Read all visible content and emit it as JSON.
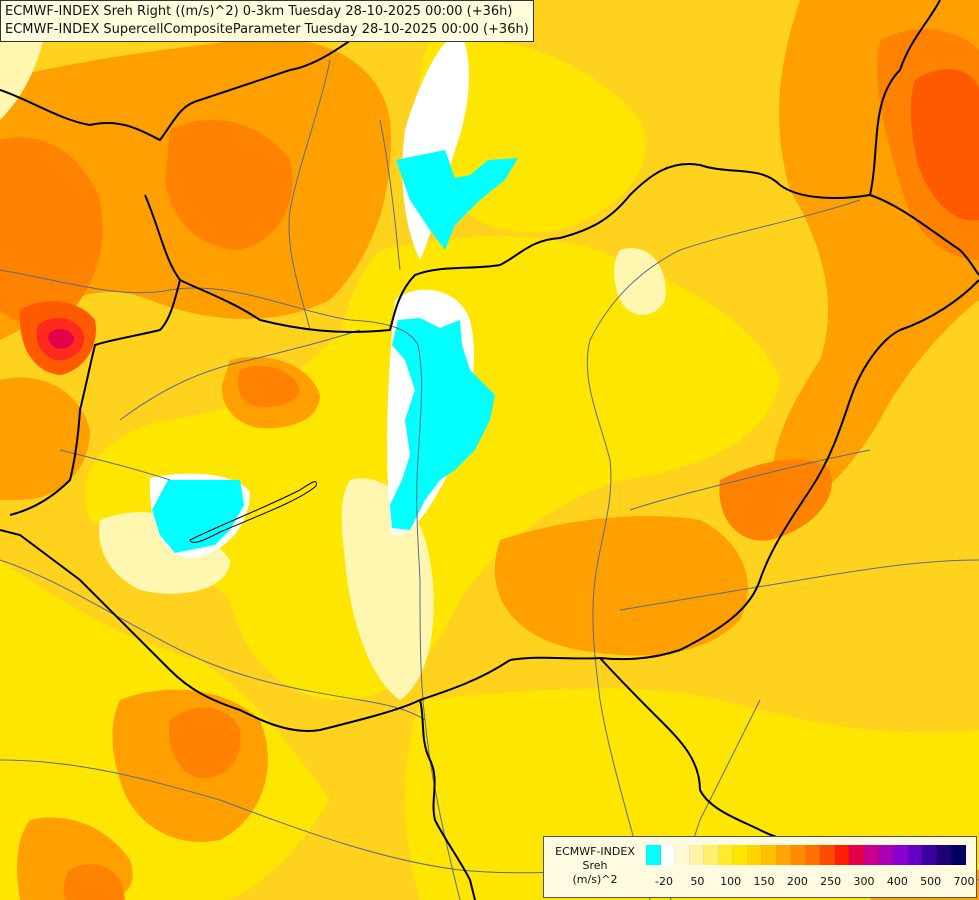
{
  "title": {
    "line1": "ECMWF-INDEX Sreh Right ((m/s)^2) 0-3km Tuesday 28-10-2025 00:00 (+36h)",
    "line2": "ECMWF-INDEX SupercellCompositeParameter Tuesday 28-10-2025 00:00 (+36h)"
  },
  "legend": {
    "name_line1": "ECMWF-INDEX",
    "name_line2": "Sreh",
    "name_line3": "(m/s)^2",
    "colors": [
      "#00ffff",
      "#ffffff",
      "#fffad2",
      "#fff5a5",
      "#fff06e",
      "#ffeb28",
      "#ffe600",
      "#ffd200",
      "#ffbe00",
      "#ffa500",
      "#ff8c00",
      "#ff6e00",
      "#ff4b00",
      "#ff1e00",
      "#e6004b",
      "#c8008c",
      "#aa00b4",
      "#8c00d2",
      "#6400c8",
      "#3c00a0",
      "#1e0078",
      "#000064"
    ],
    "ticks": [
      "-20",
      "50",
      "100",
      "150",
      "200",
      "250",
      "300",
      "400",
      "500",
      "700"
    ]
  },
  "palette": {
    "cyan": "#00ffff",
    "white": "#ffffff",
    "pale": "#fff7b0",
    "yellow": "#ffe600",
    "gold": "#ffd21e",
    "lightorange": "#ffbe00",
    "orange": "#ffa000",
    "darkorange": "#ff8200",
    "redorange": "#ff5a00",
    "red": "#ff2a1e",
    "border": "#000000",
    "river": "#5a6b8c"
  }
}
